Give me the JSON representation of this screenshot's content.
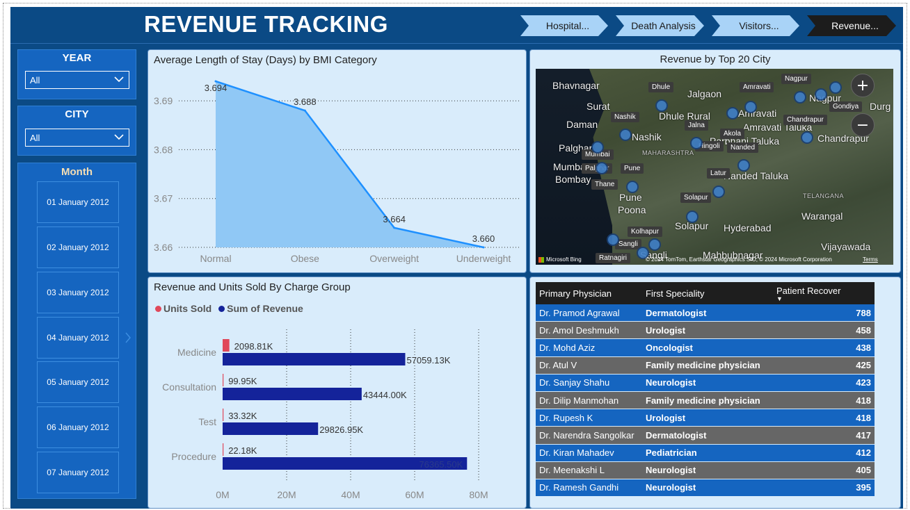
{
  "header": {
    "title": "REVENUE TRACKING"
  },
  "nav": [
    {
      "label": "Hospital..."
    },
    {
      "label": "Death Analysis"
    },
    {
      "label": "Visitors..."
    },
    {
      "label": "Revenue..."
    }
  ],
  "filters": {
    "year": {
      "label": "YEAR",
      "value": "All"
    },
    "city": {
      "label": "CITY",
      "value": "All"
    },
    "month": {
      "label": "Month",
      "items": [
        "01 January 2012",
        "02 January 2012",
        "03 January 2012",
        "04 January 2012",
        "05 January 2012",
        "06 January 2012",
        "07 January 2012"
      ]
    }
  },
  "map": {
    "title": "Revenue by Top 20 City",
    "labels": [
      "Bhavnagar",
      "Surat",
      "Daman",
      "Palghar",
      "Mumbai",
      "Bombay",
      "Nashik",
      "Dhule Rural",
      "Jalgaon",
      "Amravati",
      "Amravati Taluka",
      "Nagpur",
      "Durg",
      "Gondiya",
      "Chandrapur",
      "Pune",
      "Poona",
      "Thane",
      "Parbhani Taluka",
      "Nanded Taluka",
      "Solapur",
      "Hyderabad",
      "Warangal",
      "Kolhapur",
      "Sangli",
      "Mahbubnagar",
      "Vijayawada",
      "MAHARASHTRA",
      "TELANGANA"
    ],
    "pins": [
      "Dhule",
      "Nashik",
      "Jalna",
      "Hingoli",
      "Akola",
      "Nanded",
      "Nagpur",
      "Amravati",
      "Gondiya",
      "Chandrapur",
      "Mumbai",
      "Palghar",
      "Pune",
      "Thane",
      "Latur",
      "Solapur",
      "Kolhapur",
      "Sangli",
      "Ratnagiri"
    ],
    "attribution_brand": "Microsoft Bing",
    "attribution_text": "© 2024 TomTom, Earthstar Geographics SIO, © 2024 Microsoft Corporation",
    "terms": "Terms",
    "zoom_in": "+",
    "zoom_out": "−"
  },
  "table": {
    "columns": [
      "Primary Physician",
      "First Speciality",
      "Patient Recover"
    ],
    "rows": [
      {
        "physician": "Dr. Pramod Agrawal",
        "speciality": "Dermatologist",
        "recover": "788"
      },
      {
        "physician": "Dr. Amol Deshmukh",
        "speciality": "Urologist",
        "recover": "458"
      },
      {
        "physician": "Dr. Mohd Aziz",
        "speciality": "Oncologist",
        "recover": "438"
      },
      {
        "physician": "Dr. Atul V",
        "speciality": "Family medicine physician",
        "recover": "425"
      },
      {
        "physician": "Dr. Sanjay Shahu",
        "speciality": "Neurologist",
        "recover": "423"
      },
      {
        "physician": "Dr. Dilip Manmohan",
        "speciality": "Family medicine physician",
        "recover": "418"
      },
      {
        "physician": "Dr. Rupesh K",
        "speciality": "Urologist",
        "recover": "418"
      },
      {
        "physician": "Dr. Narendra Sangolkar",
        "speciality": "Dermatologist",
        "recover": "417"
      },
      {
        "physician": "Dr. Kiran Mahadev",
        "speciality": "Pediatrician",
        "recover": "412"
      },
      {
        "physician": "Dr. Meenakshi L",
        "speciality": "Neurologist",
        "recover": "405"
      },
      {
        "physician": "Dr. Ramesh Gandhi",
        "speciality": "Neurologist",
        "recover": "395"
      }
    ]
  },
  "colors": {
    "accent": "#1565c0",
    "navy": "#0b4a85",
    "area": "#1e90ff",
    "units": "#e0485a",
    "revenue": "#14239a"
  },
  "chart_data": [
    {
      "type": "area",
      "title": "Average Length of Stay (Days) by BMI Category",
      "categories": [
        "Normal",
        "Obese",
        "Overweight",
        "Underweight"
      ],
      "values": [
        3.694,
        3.688,
        3.664,
        3.66
      ],
      "value_labels": [
        "3.694",
        "3.688",
        "3.664",
        "3.660"
      ],
      "yticks": [
        "3.66",
        "3.67",
        "3.68",
        "3.69"
      ],
      "ylim": [
        3.66,
        3.694
      ],
      "grid": true
    },
    {
      "type": "bar",
      "title": "Revenue and Units Sold By Charge Group",
      "categories": [
        "Medicine",
        "Consultation",
        "Test",
        "Procedure"
      ],
      "series": [
        {
          "name": "Units Sold",
          "values": [
            2098.81,
            99.95,
            33.32,
            22.18
          ],
          "labels": [
            "2098.81K",
            "99.95K",
            "33.32K",
            "22.18K"
          ]
        },
        {
          "name": "Sum of Revenue",
          "values": [
            57059.13,
            43444.0,
            29826.95,
            76365.5
          ],
          "labels": [
            "57059.13K",
            "43444.00K",
            "29826.95K",
            "76365.50K"
          ]
        }
      ],
      "xticks": [
        "0M",
        "20M",
        "40M",
        "60M",
        "80M"
      ],
      "xlim": [
        0,
        80000
      ],
      "legend": "top-left",
      "grid": true
    }
  ]
}
